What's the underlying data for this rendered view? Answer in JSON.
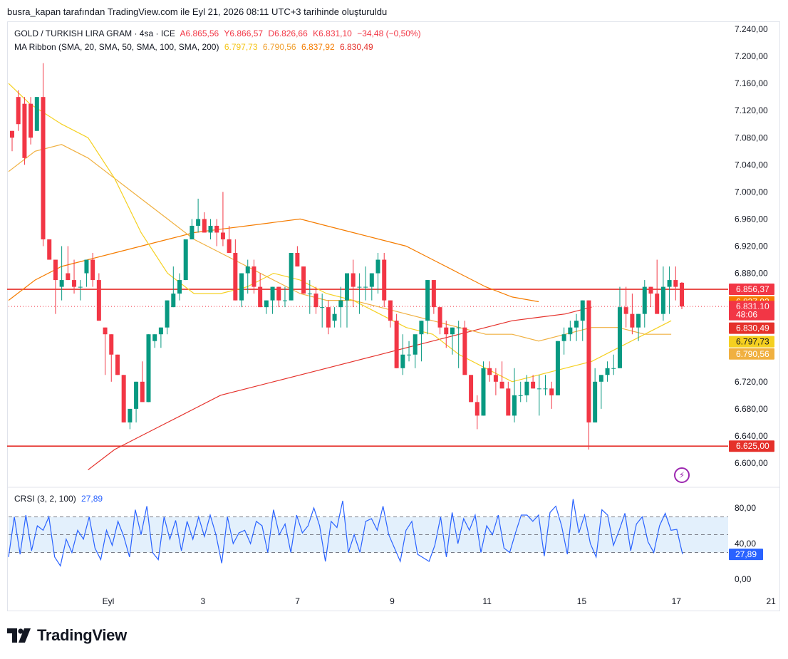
{
  "header": {
    "caption": "busra_kapan tarafından TradingView.com ile Eyl 21, 2026 08:11 UTC+3 tarihinde oluşturuldu"
  },
  "legend": {
    "symbol": "GOLD / TURKISH LIRA GRAM · 4sa · ICE",
    "open": "A6.865,56",
    "high": "Y6.866,57",
    "low": "D6.826,66",
    "close": "K6.831,10",
    "change": "−34,48 (−0,50%)",
    "ma_label": "MA Ribbon (SMA, 20, SMA, 50, SMA, 100, SMA, 200)",
    "ma20": "6.797,73",
    "ma50": "6.790,56",
    "ma100": "6.837,92",
    "ma200": "6.830,49",
    "crsi_label": "CRSI (3, 2, 100)",
    "crsi_value": "27,89"
  },
  "logo": {
    "text": "TradingView"
  },
  "colors": {
    "up": "#089981",
    "down": "#f23645",
    "ma20": "#f5d020",
    "ma50": "#f0b040",
    "ma100": "#f57c00",
    "ma200": "#e5312b",
    "crsi": "#2962ff",
    "crsi_band": "#e3f0fc",
    "level": "#e5312b"
  },
  "chart_data": [
    {
      "type": "candlestick",
      "title": "GOLD / TURKISH LIRA GRAM · 4sa · ICE",
      "ylim": [
        6580,
        7250
      ],
      "y_ticks": [
        "7.240,00",
        "7.200,00",
        "7.160,00",
        "7.120,00",
        "7.080,00",
        "7.040,00",
        "7.000,00",
        "6.960,00",
        "6.920,00",
        "6.880,00",
        "6.720,00",
        "6.680,00",
        "6.640,00",
        "6.600,00"
      ],
      "y_tick_values": [
        7240,
        7200,
        7160,
        7120,
        7080,
        7040,
        7000,
        6960,
        6920,
        6880,
        6720,
        6680,
        6640,
        6600
      ],
      "x_labels": [
        "Eyl",
        "3",
        "7",
        "9",
        "11",
        "15",
        "17",
        "21"
      ],
      "x_label_positions": [
        0,
        3.57,
        7.14,
        10.71,
        14.29,
        17.86,
        21.43,
        25.0
      ],
      "x_range": [
        -0.3,
        26.6
      ],
      "candles": [
        [
          7.09,
          7.09,
          7.06,
          7.08
        ],
        [
          7.14,
          7.15,
          7.09,
          7.1
        ],
        [
          7.13,
          7.14,
          7.04,
          7.05
        ],
        [
          7.13,
          7.14,
          7.07,
          7.08
        ],
        [
          7.09,
          7.14,
          7.09,
          7.14
        ],
        [
          7.14,
          7.19,
          6.92,
          6.93
        ],
        [
          6.93,
          6.93,
          6.9,
          6.9
        ],
        [
          6.9,
          6.9,
          6.82,
          6.87
        ],
        [
          6.86,
          6.92,
          6.84,
          6.87
        ],
        [
          6.88,
          6.92,
          6.87,
          6.87
        ],
        [
          6.87,
          6.9,
          6.85,
          6.86
        ],
        [
          6.86,
          6.87,
          6.84,
          6.86
        ],
        [
          6.88,
          6.9,
          6.86,
          6.9
        ],
        [
          6.9,
          6.91,
          6.86,
          6.87
        ],
        [
          6.87,
          6.88,
          6.81,
          6.81
        ],
        [
          6.8,
          6.8,
          6.73,
          6.79
        ],
        [
          6.79,
          6.79,
          6.72,
          6.76
        ],
        [
          6.76,
          6.76,
          6.73,
          6.73
        ],
        [
          6.73,
          6.73,
          6.66,
          6.66
        ],
        [
          6.66,
          6.66,
          6.65,
          6.68
        ],
        [
          6.68,
          6.72,
          6.66,
          6.72
        ],
        [
          6.72,
          6.75,
          6.7,
          6.69
        ],
        [
          6.69,
          6.79,
          6.69,
          6.79
        ],
        [
          6.78,
          6.79,
          6.77,
          6.79
        ],
        [
          6.79,
          6.8,
          6.77,
          6.8
        ],
        [
          6.8,
          6.84,
          6.79,
          6.84
        ],
        [
          6.83,
          6.89,
          6.83,
          6.85
        ],
        [
          6.85,
          6.88,
          6.84,
          6.87
        ],
        [
          6.87,
          6.92,
          6.87,
          6.93
        ],
        [
          6.93,
          6.96,
          6.93,
          6.95
        ],
        [
          6.95,
          6.99,
          6.94,
          6.96
        ],
        [
          6.96,
          6.97,
          6.94,
          6.94
        ],
        [
          6.94,
          6.96,
          6.93,
          6.95
        ],
        [
          6.95,
          6.96,
          6.92,
          6.94
        ],
        [
          6.94,
          7.0,
          6.92,
          6.93
        ],
        [
          6.93,
          6.95,
          6.91,
          6.91
        ],
        [
          6.91,
          6.93,
          6.84,
          6.84
        ],
        [
          6.84,
          6.88,
          6.83,
          6.88
        ],
        [
          6.88,
          6.9,
          6.85,
          6.89
        ],
        [
          6.89,
          6.9,
          6.85,
          6.86
        ],
        [
          6.86,
          6.88,
          6.83,
          6.83
        ],
        [
          6.83,
          6.84,
          6.82,
          6.84
        ],
        [
          6.84,
          6.86,
          6.82,
          6.86
        ],
        [
          6.86,
          6.86,
          6.83,
          6.84
        ],
        [
          6.84,
          6.86,
          6.83,
          6.84
        ],
        [
          6.84,
          6.91,
          6.84,
          6.91
        ],
        [
          6.91,
          6.92,
          6.89,
          6.89
        ],
        [
          6.89,
          6.89,
          6.85,
          6.85
        ],
        [
          6.85,
          6.87,
          6.82,
          6.85
        ],
        [
          6.85,
          6.86,
          6.82,
          6.83
        ],
        [
          6.83,
          6.85,
          6.8,
          6.83
        ],
        [
          6.83,
          6.84,
          6.79,
          6.8
        ],
        [
          6.81,
          6.83,
          6.8,
          6.82
        ],
        [
          6.83,
          6.86,
          6.8,
          6.84
        ],
        [
          6.84,
          6.87,
          6.8,
          6.88
        ],
        [
          6.88,
          6.9,
          6.83,
          6.86
        ],
        [
          6.86,
          6.88,
          6.82,
          6.86
        ],
        [
          6.86,
          6.89,
          6.84,
          6.86
        ],
        [
          6.86,
          6.88,
          6.84,
          6.88
        ],
        [
          6.88,
          6.91,
          6.85,
          6.9
        ],
        [
          6.9,
          6.91,
          6.83,
          6.84
        ],
        [
          6.84,
          6.84,
          6.8,
          6.81
        ],
        [
          6.81,
          6.82,
          6.74,
          6.74
        ],
        [
          6.74,
          6.79,
          6.73,
          6.76
        ],
        [
          6.76,
          6.78,
          6.75,
          6.76
        ],
        [
          6.76,
          6.78,
          6.74,
          6.79
        ],
        [
          6.79,
          6.81,
          6.75,
          6.81
        ],
        [
          6.81,
          6.87,
          6.79,
          6.87
        ],
        [
          6.87,
          6.87,
          6.82,
          6.83
        ],
        [
          6.83,
          6.83,
          6.79,
          6.8
        ],
        [
          6.8,
          6.81,
          6.77,
          6.79
        ],
        [
          6.79,
          6.8,
          6.76,
          6.8
        ],
        [
          6.8,
          6.81,
          6.74,
          6.8
        ],
        [
          6.8,
          6.81,
          6.74,
          6.73
        ],
        [
          6.73,
          6.73,
          6.69,
          6.69
        ],
        [
          6.69,
          6.7,
          6.65,
          6.67
        ],
        [
          6.67,
          6.75,
          6.67,
          6.74
        ],
        [
          6.74,
          6.75,
          6.72,
          6.73
        ],
        [
          6.73,
          6.74,
          6.7,
          6.72
        ],
        [
          6.72,
          6.75,
          6.72,
          6.71
        ],
        [
          6.71,
          6.72,
          6.69,
          6.67
        ],
        [
          6.67,
          6.74,
          6.66,
          6.7
        ],
        [
          6.7,
          6.72,
          6.69,
          6.7
        ],
        [
          6.7,
          6.73,
          6.69,
          6.72
        ],
        [
          6.72,
          6.73,
          6.71,
          6.71
        ],
        [
          6.71,
          6.73,
          6.67,
          6.71
        ],
        [
          6.71,
          6.73,
          6.7,
          6.71
        ],
        [
          6.71,
          6.72,
          6.68,
          6.7
        ],
        [
          6.7,
          6.78,
          6.7,
          6.78
        ],
        [
          6.78,
          6.8,
          6.76,
          6.79
        ],
        [
          6.79,
          6.81,
          6.78,
          6.8
        ],
        [
          6.8,
          6.82,
          6.78,
          6.81
        ],
        [
          6.81,
          6.84,
          6.78,
          6.84
        ],
        [
          6.84,
          6.84,
          6.62,
          6.66
        ],
        [
          6.66,
          6.74,
          6.66,
          6.72
        ],
        [
          6.72,
          6.73,
          6.68,
          6.73
        ],
        [
          6.73,
          6.75,
          6.72,
          6.74
        ],
        [
          6.74,
          6.76,
          6.73,
          6.74
        ],
        [
          6.74,
          6.86,
          6.74,
          6.83
        ],
        [
          6.83,
          6.86,
          6.8,
          6.82
        ],
        [
          6.82,
          6.85,
          6.79,
          6.8
        ],
        [
          6.8,
          6.82,
          6.78,
          6.82
        ],
        [
          6.82,
          6.87,
          6.8,
          6.86
        ],
        [
          6.86,
          6.86,
          6.83,
          6.85
        ],
        [
          6.85,
          6.9,
          6.83,
          6.82
        ],
        [
          6.82,
          6.89,
          6.81,
          6.86
        ],
        [
          6.86,
          6.89,
          6.82,
          6.87
        ],
        [
          6.87,
          6.89,
          6.84,
          6.86
        ],
        [
          6.866,
          6.867,
          6.827,
          6.831
        ]
      ],
      "ma_ribbon": {
        "sma20": [
          [
            0,
            7.16
          ],
          [
            0.8,
            7.13
          ],
          [
            2,
            7.1
          ],
          [
            3,
            7.08
          ],
          [
            4,
            7.02
          ],
          [
            5,
            6.94
          ],
          [
            6,
            6.88
          ],
          [
            7,
            6.85
          ],
          [
            8,
            6.85
          ],
          [
            9,
            6.86
          ],
          [
            10,
            6.88
          ],
          [
            11,
            6.87
          ],
          [
            12,
            6.85
          ],
          [
            13,
            6.84
          ],
          [
            14,
            6.82
          ],
          [
            15,
            6.8
          ],
          [
            16,
            6.79
          ],
          [
            17,
            6.76
          ],
          [
            18,
            6.74
          ],
          [
            19,
            6.72
          ],
          [
            20,
            6.73
          ],
          [
            21,
            6.74
          ],
          [
            22,
            6.75
          ],
          [
            23,
            6.77
          ],
          [
            24,
            6.79
          ],
          [
            25,
            6.81
          ]
        ],
        "sma50": [
          [
            0,
            7.03
          ],
          [
            1,
            7.06
          ],
          [
            2,
            7.07
          ],
          [
            3,
            7.05
          ],
          [
            4,
            7.02
          ],
          [
            5,
            6.99
          ],
          [
            6,
            6.96
          ],
          [
            7,
            6.93
          ],
          [
            8,
            6.91
          ],
          [
            9,
            6.89
          ],
          [
            10,
            6.87
          ],
          [
            11,
            6.85
          ],
          [
            12,
            6.84
          ],
          [
            13,
            6.84
          ],
          [
            14,
            6.83
          ],
          [
            15,
            6.82
          ],
          [
            16,
            6.81
          ],
          [
            17,
            6.8
          ],
          [
            18,
            6.79
          ],
          [
            19,
            6.79
          ],
          [
            20,
            6.78
          ],
          [
            21,
            6.79
          ],
          [
            22,
            6.8
          ],
          [
            23,
            6.8
          ],
          [
            24,
            6.79
          ],
          [
            25,
            6.79
          ]
        ],
        "sma100": [
          [
            0,
            6.84
          ],
          [
            1,
            6.87
          ],
          [
            2,
            6.89
          ],
          [
            3,
            6.9
          ],
          [
            4,
            6.91
          ],
          [
            5,
            6.92
          ],
          [
            6,
            6.93
          ],
          [
            7,
            6.94
          ],
          [
            8,
            6.945
          ],
          [
            9,
            6.95
          ],
          [
            10,
            6.955
          ],
          [
            11,
            6.96
          ],
          [
            12,
            6.95
          ],
          [
            13,
            6.94
          ],
          [
            14,
            6.93
          ],
          [
            15,
            6.92
          ],
          [
            16,
            6.9
          ],
          [
            17,
            6.88
          ],
          [
            18,
            6.86
          ],
          [
            19,
            6.845
          ],
          [
            20,
            6.838
          ]
        ],
        "sma200": [
          [
            3,
            6.59
          ],
          [
            4,
            6.62
          ],
          [
            5,
            6.64
          ],
          [
            6,
            6.66
          ],
          [
            7,
            6.68
          ],
          [
            8,
            6.7
          ],
          [
            9,
            6.71
          ],
          [
            10,
            6.72
          ],
          [
            11,
            6.73
          ],
          [
            12,
            6.74
          ],
          [
            13,
            6.75
          ],
          [
            14,
            6.76
          ],
          [
            15,
            6.77
          ],
          [
            16,
            6.78
          ],
          [
            17,
            6.79
          ],
          [
            18,
            6.8
          ],
          [
            19,
            6.81
          ],
          [
            20,
            6.815
          ],
          [
            21,
            6.82
          ],
          [
            22,
            6.83
          ]
        ]
      },
      "levels": [
        {
          "value": 6856.37,
          "label": "6.856,37"
        },
        {
          "value": 6625.0,
          "label": "6.625,00"
        }
      ],
      "price_labels": [
        {
          "label": "6.856,37",
          "value": 6856.37,
          "color": "#f23645"
        },
        {
          "label": "6.837,92",
          "value": 6837.92,
          "color": "#f57c00"
        },
        {
          "label": "6.831,10",
          "value": 6831.1,
          "color": "#f23645"
        },
        {
          "label": "48:06",
          "value": 6819,
          "color": "#f23645"
        },
        {
          "label": "6.830,49",
          "value": 6799,
          "color": "#e5312b"
        },
        {
          "label": "6.797,73",
          "value": 6779,
          "color": "#f5d020"
        },
        {
          "label": "6.790,56",
          "value": 6761,
          "color": "#f0b040"
        },
        {
          "label": "6.625,00",
          "value": 6625.0,
          "color": "#e5312b"
        }
      ]
    },
    {
      "type": "line",
      "title": "CRSI (3, 2, 100)",
      "ylim": [
        0,
        100
      ],
      "y_ticks": [
        "80,00",
        "40,00",
        "0,00"
      ],
      "y_tick_values": [
        80,
        40,
        0
      ],
      "bands": [
        70,
        50,
        30
      ],
      "last_label": "27,89",
      "last_value": 27.89,
      "series": [
        {
          "values": [
            25,
            70,
            28,
            72,
            32,
            60,
            55,
            70,
            25,
            15,
            45,
            30,
            55,
            45,
            70,
            35,
            22,
            55,
            38,
            65,
            48,
            25,
            78,
            50,
            82,
            30,
            22,
            70,
            45,
            66,
            32,
            65,
            45,
            70,
            48,
            72,
            50,
            18,
            70,
            40,
            52,
            55,
            40,
            65,
            60,
            30,
            78,
            50,
            62,
            30,
            72,
            52,
            60,
            80,
            60,
            20,
            65,
            58,
            88,
            30,
            50,
            30,
            65,
            68,
            55,
            82,
            50,
            35,
            20,
            55,
            65,
            28,
            24,
            20,
            38,
            70,
            25,
            75,
            40,
            68,
            55,
            72,
            30,
            60,
            50,
            72,
            35,
            30,
            52,
            72,
            72,
            65,
            72,
            26,
            75,
            82,
            60,
            28,
            90,
            52,
            72,
            40,
            25,
            78,
            72,
            38,
            55,
            74,
            32,
            62,
            70,
            42,
            30,
            60,
            74,
            55,
            56,
            28
          ]
        }
      ]
    }
  ]
}
